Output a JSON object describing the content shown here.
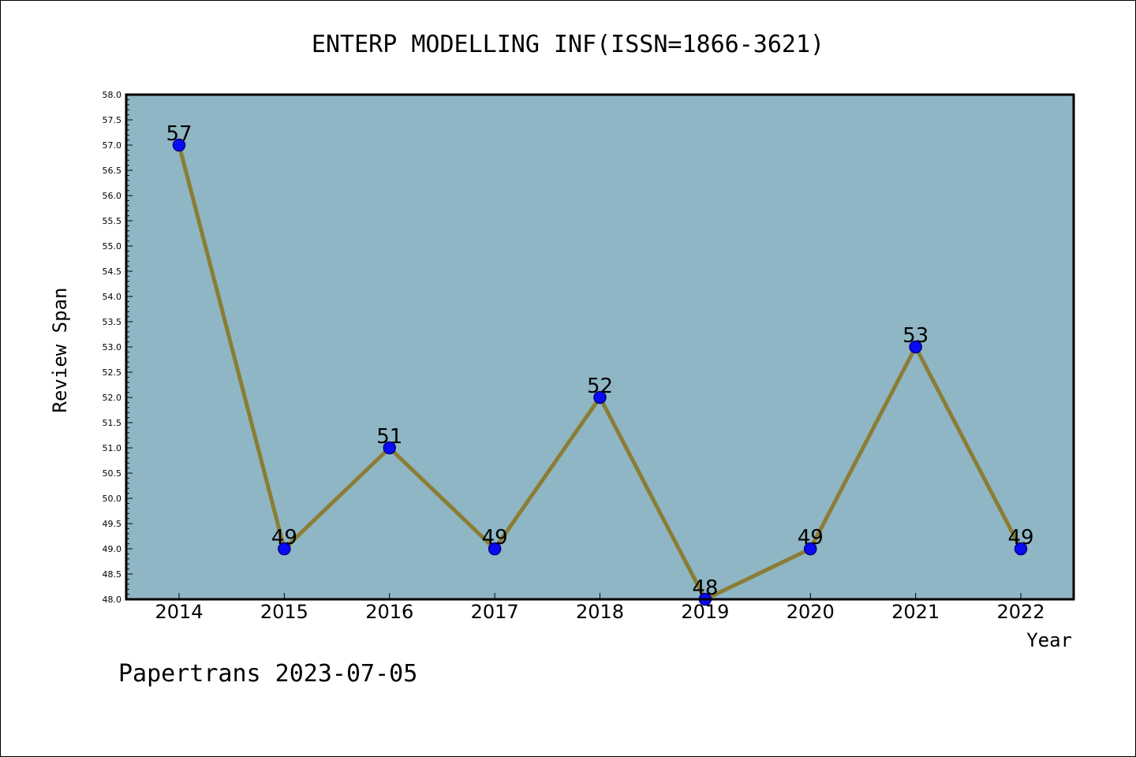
{
  "chart_data": {
    "type": "line",
    "title": "ENTERP MODELLING INF(ISSN=1866-3621)",
    "xlabel": "Year",
    "ylabel": "Review Span",
    "categories": [
      "2014",
      "2015",
      "2016",
      "2017",
      "2018",
      "2019",
      "2020",
      "2021",
      "2022"
    ],
    "series": [
      {
        "values": [
          57,
          49,
          51,
          49,
          52,
          48,
          49,
          53,
          49
        ]
      }
    ],
    "data_labels": [
      "57",
      "49",
      "51",
      "49",
      "52",
      "48",
      "49",
      "53",
      "49"
    ],
    "ylim": [
      48.0,
      58.0
    ],
    "y_ticks": [
      "48.0",
      "48.5",
      "49.0",
      "49.5",
      "50.0",
      "50.5",
      "51.0",
      "51.5",
      "52.0",
      "52.5",
      "53.0",
      "53.5",
      "54.0",
      "54.5",
      "55.0",
      "55.5",
      "56.0",
      "56.5",
      "57.0",
      "57.5",
      "58.0"
    ],
    "grid": false,
    "legend": "none",
    "colors": {
      "plot_background": "#8fb6c4",
      "line": "#8b7d35",
      "marker": "#0a0af5",
      "marker_edge": "#00008b"
    }
  },
  "footer": {
    "text": "Papertrans 2023-07-05"
  }
}
